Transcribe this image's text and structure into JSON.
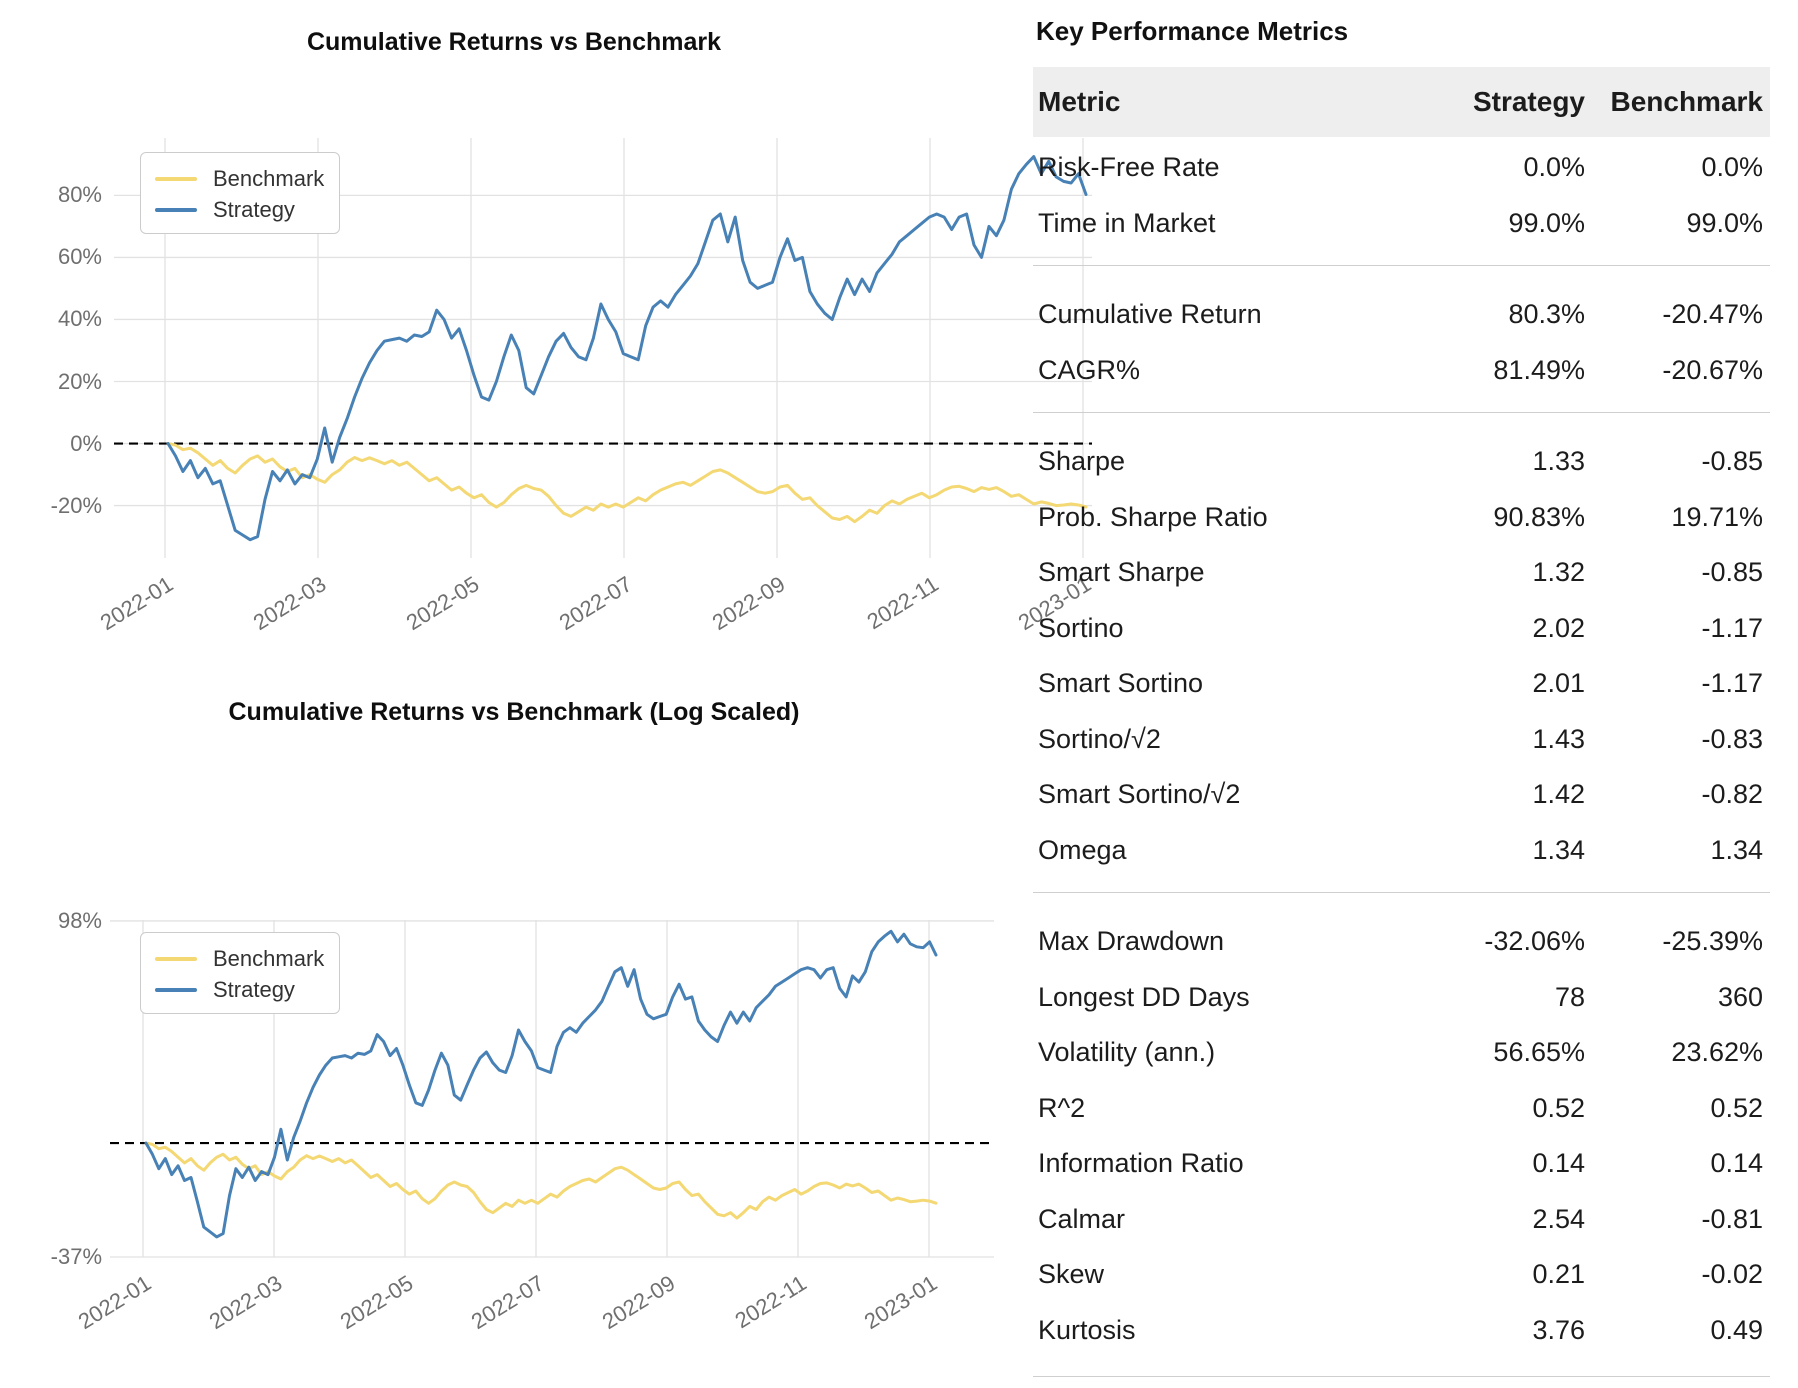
{
  "chart_data": [
    {
      "type": "line",
      "title": "Cumulative Returns vs Benchmark",
      "yscale": "linear",
      "grid": true,
      "legend_position": "upper left",
      "x_start": "2022-01-03",
      "x_interval_days": 3,
      "x_tick_labels": [
        "2022-01",
        "2022-03",
        "2022-05",
        "2022-07",
        "2022-09",
        "2022-11",
        "2023-01"
      ],
      "y_ticks": [
        80,
        60,
        40,
        20,
        0,
        -20
      ],
      "y_tick_labels": [
        "80%",
        "60%",
        "40%",
        "20%",
        "0%",
        "-20%"
      ],
      "ylim": [
        -36.9,
        98.5
      ],
      "zero_line_dashed": true,
      "series": [
        {
          "name": "Benchmark",
          "color": "#f3d873",
          "values": [
            0,
            -0.5,
            -2,
            -1.5,
            -3,
            -5,
            -7,
            -5.5,
            -8,
            -9.5,
            -7,
            -5,
            -4,
            -6,
            -5,
            -7.5,
            -9,
            -8,
            -11,
            -10,
            -11.5,
            -12.5,
            -10,
            -8.5,
            -6,
            -4.5,
            -5.5,
            -4.6,
            -5.5,
            -6.5,
            -5.5,
            -7,
            -6,
            -8,
            -10,
            -12,
            -11,
            -13,
            -15,
            -14,
            -16,
            -17.5,
            -16.5,
            -19,
            -20.5,
            -19,
            -16.5,
            -14.5,
            -13.5,
            -14.5,
            -15,
            -17,
            -20,
            -22.5,
            -23.5,
            -22,
            -20.5,
            -21.5,
            -19.5,
            -20.5,
            -19.5,
            -20.5,
            -19,
            -17.5,
            -18.5,
            -16.5,
            -15,
            -14,
            -13,
            -12.5,
            -13.5,
            -12,
            -10.5,
            -9,
            -8.5,
            -9.5,
            -11,
            -12.5,
            -14,
            -15.5,
            -16,
            -15.5,
            -14,
            -13.5,
            -16,
            -18,
            -17.5,
            -20,
            -22,
            -24,
            -24.5,
            -23.5,
            -25.2,
            -23.5,
            -21.5,
            -22.5,
            -20,
            -18.5,
            -19.5,
            -18,
            -17,
            -16,
            -17.5,
            -16.5,
            -15,
            -14,
            -13.8,
            -14.5,
            -15.5,
            -14.2,
            -14.8,
            -14.2,
            -15.5,
            -17,
            -16.5,
            -18,
            -19.5,
            -18.8,
            -19.3,
            -20,
            -19.8,
            -19.5,
            -19.8,
            -20.47
          ]
        },
        {
          "name": "Strategy",
          "color": "#4781b5",
          "values": [
            0,
            -4,
            -9,
            -5.5,
            -11,
            -8,
            -13,
            -12,
            -20,
            -28,
            -29.5,
            -31,
            -30,
            -18,
            -9,
            -12,
            -8.5,
            -13,
            -10,
            -11,
            -5,
            5,
            -6,
            2,
            8,
            15,
            21,
            26,
            30,
            33,
            33.5,
            34,
            33,
            35,
            34.5,
            36,
            43,
            40,
            34,
            37,
            30,
            22,
            15,
            14,
            20,
            28,
            35,
            30,
            18,
            16,
            22,
            28,
            33,
            35.5,
            31,
            28,
            27,
            34,
            45,
            40,
            36,
            29,
            28,
            27,
            38,
            44,
            46,
            44,
            48,
            51,
            54,
            58,
            65,
            72,
            74,
            65,
            73,
            59,
            52,
            50,
            51,
            52,
            60,
            66,
            59,
            60,
            49,
            45,
            42,
            40,
            47,
            53,
            48,
            53,
            49,
            55,
            58,
            61,
            65,
            67,
            69,
            71,
            73,
            74,
            73,
            69,
            73,
            74,
            64,
            60,
            70,
            67,
            72,
            82,
            87,
            90,
            92.5,
            87,
            91,
            86,
            84.5,
            84,
            87,
            80.3
          ]
        }
      ]
    },
    {
      "type": "line",
      "title": "Cumulative Returns vs Benchmark (Log Scaled)",
      "yscale": "log",
      "grid": true,
      "legend_position": "upper left",
      "x_start": "2022-01-03",
      "x_interval_days": 3,
      "x_tick_labels": [
        "2022-01",
        "2022-03",
        "2022-05",
        "2022-07",
        "2022-09",
        "2022-11",
        "2023-01"
      ],
      "y_ticks": [
        98,
        -37
      ],
      "y_tick_labels": [
        "98%",
        "-37%"
      ],
      "ylim": [
        -37,
        98.5
      ],
      "zero_line_dashed": true,
      "series_same_as_chart": 0
    }
  ],
  "legend": {
    "items": [
      "Benchmark",
      "Strategy"
    ]
  },
  "metrics_table": {
    "title": "Key Performance Metrics",
    "columns": {
      "metric": "Metric",
      "strategy": "Strategy",
      "benchmark": "Benchmark"
    },
    "groups": [
      [
        {
          "metric": "Risk-Free Rate",
          "strategy": "0.0%",
          "benchmark": "0.0%"
        },
        {
          "metric": "Time in Market",
          "strategy": "99.0%",
          "benchmark": "99.0%"
        }
      ],
      [
        {
          "metric": "Cumulative Return",
          "strategy": "80.3%",
          "benchmark": "-20.47%"
        },
        {
          "metric": "CAGR%",
          "strategy": "81.49%",
          "benchmark": "-20.67%"
        }
      ],
      [
        {
          "metric": "Sharpe",
          "strategy": "1.33",
          "benchmark": "-0.85"
        },
        {
          "metric": "Prob. Sharpe Ratio",
          "strategy": "90.83%",
          "benchmark": "19.71%"
        },
        {
          "metric": "Smart Sharpe",
          "strategy": "1.32",
          "benchmark": "-0.85"
        },
        {
          "metric": "Sortino",
          "strategy": "2.02",
          "benchmark": "-1.17"
        },
        {
          "metric": "Smart Sortino",
          "strategy": "2.01",
          "benchmark": "-1.17"
        },
        {
          "metric": "Sortino/√2",
          "strategy": "1.43",
          "benchmark": "-0.83"
        },
        {
          "metric": "Smart Sortino/√2",
          "strategy": "1.42",
          "benchmark": "-0.82"
        },
        {
          "metric": "Omega",
          "strategy": "1.34",
          "benchmark": "1.34"
        }
      ],
      [
        {
          "metric": "Max Drawdown",
          "strategy": "-32.06%",
          "benchmark": "-25.39%"
        },
        {
          "metric": "Longest DD Days",
          "strategy": "78",
          "benchmark": "360"
        },
        {
          "metric": "Volatility (ann.)",
          "strategy": "56.65%",
          "benchmark": "23.62%"
        },
        {
          "metric": "R^2",
          "strategy": "0.52",
          "benchmark": "0.52"
        },
        {
          "metric": "Information Ratio",
          "strategy": "0.14",
          "benchmark": "0.14"
        },
        {
          "metric": "Calmar",
          "strategy": "2.54",
          "benchmark": "-0.81"
        },
        {
          "metric": "Skew",
          "strategy": "0.21",
          "benchmark": "-0.02"
        },
        {
          "metric": "Kurtosis",
          "strategy": "3.76",
          "benchmark": "0.49"
        }
      ]
    ]
  },
  "colors": {
    "grid": "#e2e2e2",
    "zero_line": "#000000",
    "tick_label": "#6f6f6f"
  }
}
